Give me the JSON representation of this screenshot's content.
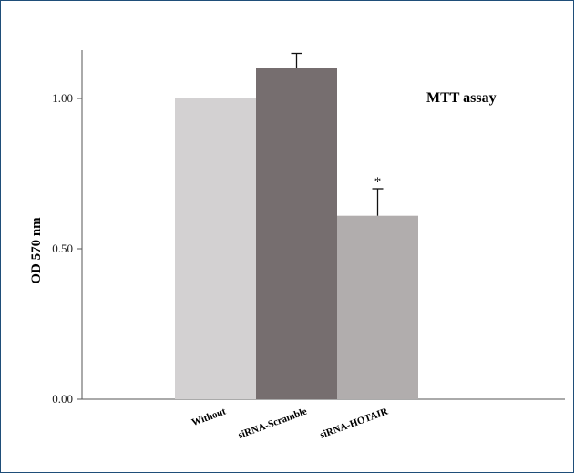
{
  "chart_data": {
    "type": "bar",
    "title": "MTT assay",
    "ylabel": "OD 570 nm",
    "xlabel": "",
    "categories": [
      "Without",
      "siRNA-Scramble",
      "siRNA-HOTAIR"
    ],
    "values": [
      1.0,
      1.1,
      0.61
    ],
    "error_upper": [
      null,
      1.15,
      0.7
    ],
    "annotations": [
      "",
      "",
      "*"
    ],
    "bar_colors": [
      "#d3d1d2",
      "#766e6f",
      "#b1adad"
    ],
    "ylim": [
      0,
      1.17
    ],
    "yticks": [
      0.0,
      0.5,
      1.0
    ],
    "ytick_labels": [
      "0.00",
      "0.50",
      "1.00"
    ],
    "grid": false,
    "legend": "none"
  }
}
